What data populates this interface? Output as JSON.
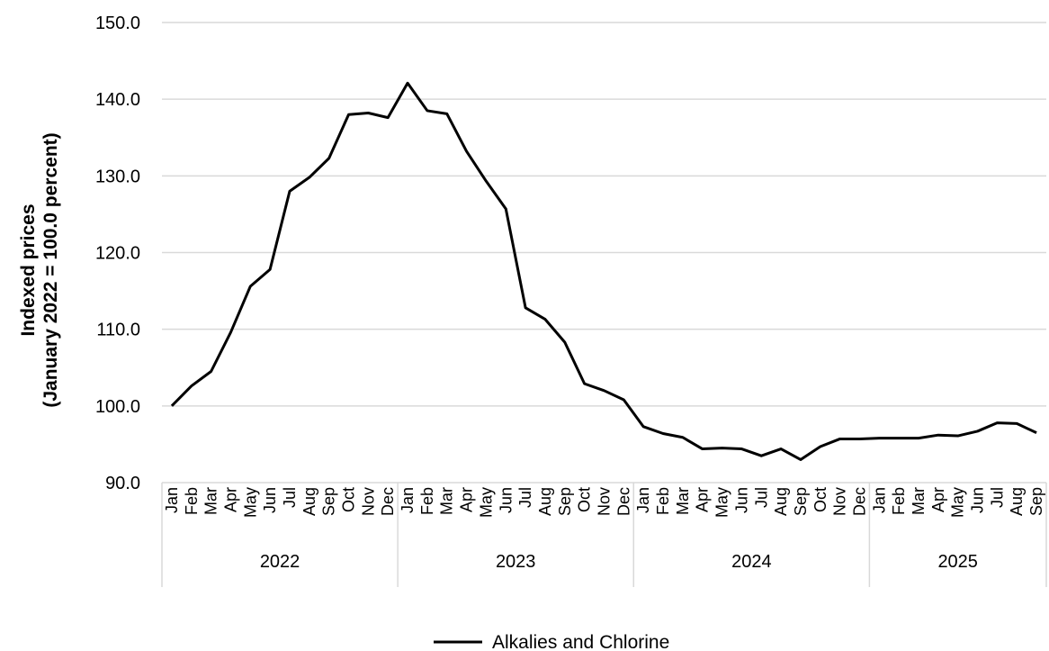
{
  "chart_data": {
    "type": "line",
    "ylabel": [
      "Indexed prices",
      "(January 2022 = 100.0 percent)"
    ],
    "ylim": [
      90.0,
      150.0
    ],
    "yticks": [
      "90.0",
      "100.0",
      "110.0",
      "120.0",
      "130.0",
      "140.0",
      "150.0"
    ],
    "grid": true,
    "legend_placement": "bottom-center",
    "years": [
      "2022",
      "2023",
      "2024",
      "2025"
    ],
    "months": [
      "Jan",
      "Feb",
      "Mar",
      "Apr",
      "May",
      "Jun",
      "Jul",
      "Aug",
      "Sep",
      "Oct",
      "Nov",
      "Dec",
      "Jan",
      "Feb",
      "Mar",
      "Apr",
      "May",
      "Jun",
      "Jul",
      "Aug",
      "Sep",
      "Oct",
      "Nov",
      "Dec",
      "Jan",
      "Feb",
      "Mar",
      "Apr",
      "May",
      "Jun",
      "Jul",
      "Aug",
      "Sep",
      "Oct",
      "Nov",
      "Dec",
      "Jan",
      "Feb",
      "Mar",
      "Apr",
      "May",
      "Jun",
      "Jul",
      "Aug",
      "Sep"
    ],
    "series": [
      {
        "name": "Alkalies and Chlorine",
        "color": "#000000",
        "values": [
          100.0,
          102.6,
          104.5,
          109.6,
          115.6,
          117.8,
          128.0,
          129.8,
          132.3,
          138.0,
          138.2,
          137.6,
          142.1,
          138.5,
          138.1,
          133.2,
          129.3,
          125.7,
          112.8,
          111.3,
          108.3,
          102.9,
          102.0,
          100.8,
          97.3,
          96.4,
          95.9,
          94.4,
          94.5,
          94.4,
          93.5,
          94.4,
          93.0,
          94.7,
          95.7,
          95.7,
          95.8,
          95.8,
          95.8,
          96.2,
          96.1,
          96.7,
          97.8,
          97.7,
          96.5
        ]
      }
    ]
  }
}
